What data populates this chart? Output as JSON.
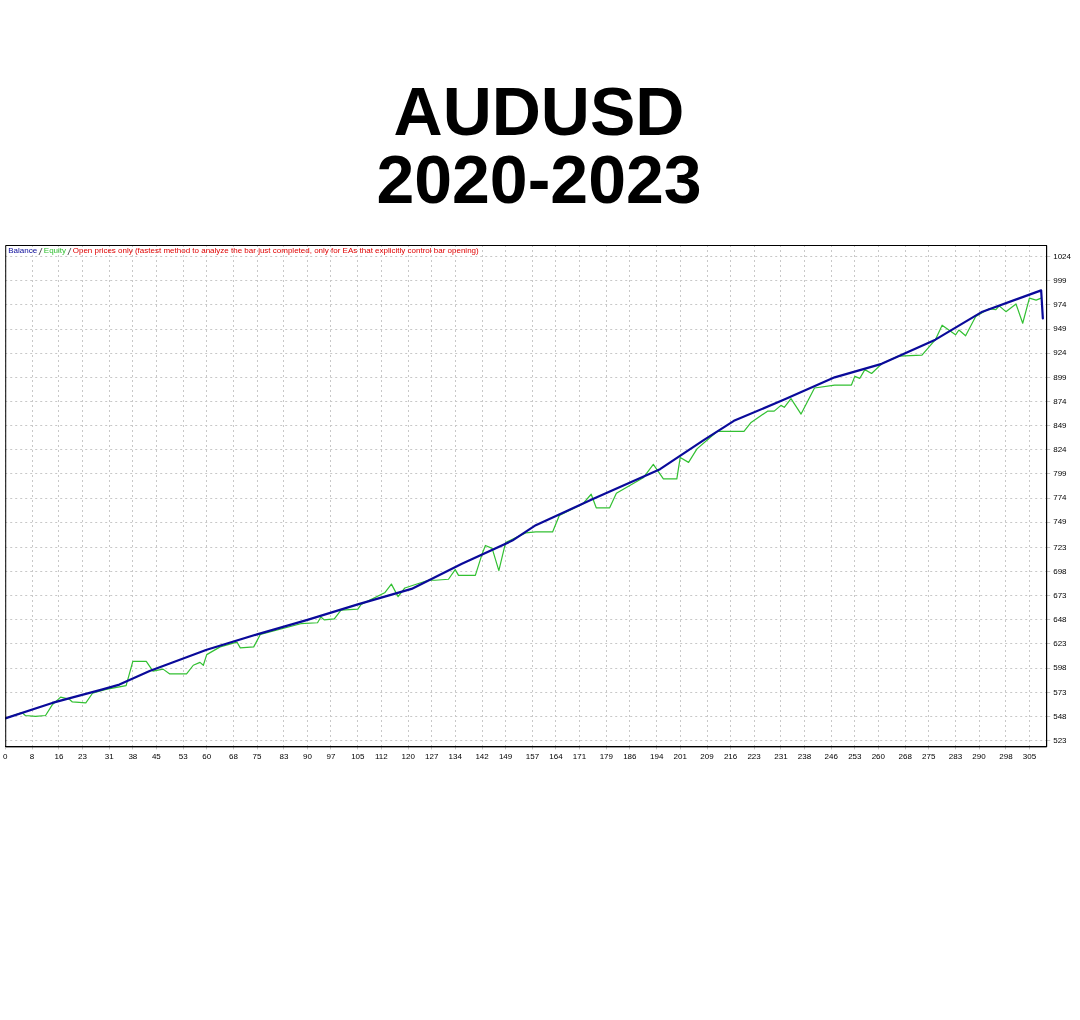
{
  "chart_data": {
    "type": "line",
    "title": "AUDUSD\n2020-2023",
    "legend": "top left",
    "grid": true,
    "marker": "none",
    "line_style": "solid",
    "annotations": [
      "Open prices only (fastest method to analyze the bar just completed, only for EAs that explicitly control bar opening)"
    ],
    "xlim": [
      0,
      310
    ],
    "xticks": [
      0,
      8,
      16,
      23,
      31,
      38,
      45,
      53,
      60,
      68,
      75,
      83,
      90,
      97,
      105,
      112,
      120,
      127,
      134,
      142,
      149,
      157,
      164,
      171,
      179,
      186,
      194,
      201,
      209,
      216,
      223,
      231,
      238,
      246,
      253,
      260,
      268,
      275,
      283,
      290,
      298,
      305
    ],
    "ylim": [
      517,
      1036
    ],
    "yticks": [
      523,
      548,
      573,
      598,
      623,
      648,
      673,
      698,
      723,
      749,
      774,
      799,
      824,
      849,
      874,
      899,
      924,
      949,
      974,
      999,
      1024
    ],
    "series": [
      {
        "name": "Balance",
        "color": "#0a0a9a",
        "x": [
          0,
          14,
          29,
          34,
          43,
          60,
          75,
          90,
          105,
          121,
          136,
          151,
          158,
          175,
          195,
          208,
          217,
          232,
          247,
          261,
          277,
          291,
          308.5,
          309
        ],
        "values": [
          546,
          562,
          576,
          581,
          595,
          617,
          633,
          648,
          664,
          680,
          706,
          730,
          746,
          773,
          804,
          834,
          854,
          876,
          899,
          913,
          938,
          967,
          989,
          960
        ]
      },
      {
        "name": "Equity",
        "color": "#32c032",
        "x": [
          0,
          5,
          6,
          9,
          12,
          14,
          16.5,
          19,
          20,
          24,
          26,
          30,
          36,
          38,
          42,
          44,
          47,
          49,
          54,
          56,
          58,
          59,
          60,
          64,
          69,
          70,
          74,
          76,
          88,
          93,
          94,
          95,
          98,
          100,
          105,
          106,
          113,
          115,
          117,
          119,
          126,
          128,
          132,
          134,
          135,
          140,
          142,
          143,
          145,
          147,
          149,
          155,
          158,
          163,
          165,
          172,
          174.5,
          176,
          180,
          182,
          190,
          193,
          196,
          200,
          201,
          203.5,
          206,
          212,
          220,
          222,
          227,
          229,
          231,
          232,
          234,
          237,
          241,
          247,
          252,
          253,
          254.5,
          256,
          258,
          261,
          266,
          273,
          277,
          279,
          283,
          284,
          286,
          289,
          293,
          295,
          296,
          298,
          301,
          303,
          305,
          307,
          308.5
        ],
        "values": [
          546,
          552,
          549,
          548,
          549,
          560,
          568,
          566,
          563,
          562,
          572,
          576,
          580,
          605,
          605,
          595,
          597,
          592,
          592,
          601,
          604,
          601,
          612,
          620,
          625,
          619,
          620,
          633,
          644,
          645,
          651,
          648,
          649,
          658,
          659,
          664,
          676,
          685,
          672,
          681,
          689,
          689,
          690,
          700,
          694,
          694,
          716,
          725,
          722,
          699,
          728,
          738,
          739,
          739,
          756,
          768,
          778,
          764,
          764,
          779,
          795,
          809,
          794,
          794,
          816,
          811,
          825,
          843,
          843,
          852,
          864,
          864,
          870,
          868,
          877,
          861,
          888,
          891,
          891,
          900,
          898,
          907,
          903,
          913,
          921,
          922,
          938,
          953,
          943,
          948,
          942,
          962,
          970,
          969,
          973,
          967,
          975,
          955,
          981,
          979,
          981
        ]
      }
    ]
  }
}
